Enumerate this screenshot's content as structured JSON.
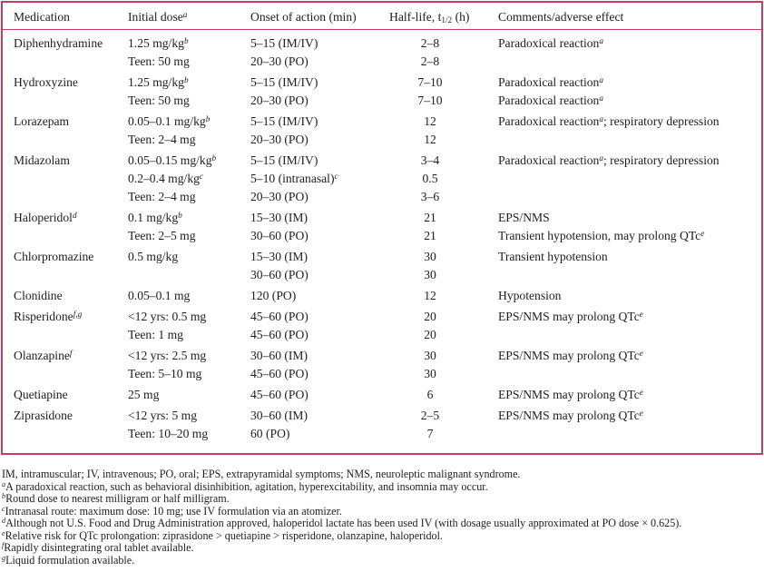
{
  "colors": {
    "border": "#c23e63",
    "text": "#1d1d1d"
  },
  "table": {
    "columns": [
      "Medication",
      "Initial dose^{a}",
      "Onset of action (min)",
      "Half-life, t_{1/2} (h)",
      "Comments/adverse effect"
    ],
    "groups": [
      {
        "medication": "Diphenhydramine",
        "rows": [
          [
            "1.25 mg/kg^{b}",
            "5–15 (IM/IV)",
            "2–8",
            "Paradoxical reaction^{a}"
          ],
          [
            "Teen: 50 mg",
            "20–30 (PO)",
            "2–8",
            ""
          ]
        ]
      },
      {
        "medication": "Hydroxyzine",
        "rows": [
          [
            "1.25 mg/kg^{b}",
            "5–15 (IM/IV)",
            "7–10",
            "Paradoxical reaction^{a}"
          ],
          [
            "Teen: 50 mg",
            "20–30 (PO)",
            "7–10",
            "Paradoxical reaction^{a}"
          ]
        ]
      },
      {
        "medication": "Lorazepam",
        "rows": [
          [
            "0.05–0.1 mg/kg^{b}",
            "5–15 (IM/IV)",
            "12",
            "Paradoxical reaction^{a}; respiratory depression"
          ],
          [
            "Teen: 2–4 mg",
            "20–30 (PO)",
            "12",
            ""
          ]
        ]
      },
      {
        "medication": "Midazolam",
        "rows": [
          [
            "0.05–0.15 mg/kg^{b}",
            "5–15 (IM/IV)",
            "3–4",
            "Paradoxical reaction^{a}; respiratory depression"
          ],
          [
            "0.2–0.4 mg/kg^{c}",
            "5–10 (intranasal)^{c}",
            "0.5",
            ""
          ],
          [
            "Teen: 2–4 mg",
            "20–30 (PO)",
            "3–6",
            ""
          ]
        ]
      },
      {
        "medication": "Haloperidol^{d}",
        "rows": [
          [
            "0.1 mg/kg^{b}",
            "15–30 (IM)",
            "21",
            "EPS/NMS"
          ],
          [
            "Teen: 2–5 mg",
            "30–60 (PO)",
            "21",
            "Transient hypotension, may prolong QTc^{e}"
          ]
        ]
      },
      {
        "medication": "Chlorpromazine",
        "rows": [
          [
            "0.5 mg/kg",
            "15–30 (IM)",
            "30",
            "Transient hypotension"
          ],
          [
            "",
            "30–60 (PO)",
            "30",
            ""
          ]
        ]
      },
      {
        "medication": "Clonidine",
        "rows": [
          [
            "0.05–0.1 mg",
            "120 (PO)",
            "12",
            "Hypotension"
          ]
        ]
      },
      {
        "medication": "Risperidone^{f,g}",
        "rows": [
          [
            "<12 yrs: 0.5 mg",
            "45–60 (PO)",
            "20",
            "EPS/NMS may prolong QTc^{e}"
          ],
          [
            "Teen: 1 mg",
            "45–60 (PO)",
            "20",
            ""
          ]
        ]
      },
      {
        "medication": "Olanzapine^{f}",
        "rows": [
          [
            "<12 yrs: 2.5 mg",
            "30–60 (IM)",
            "30",
            "EPS/NMS may prolong QTc^{e}"
          ],
          [
            "Teen: 5–10 mg",
            "45–60 (PO)",
            "30",
            ""
          ]
        ]
      },
      {
        "medication": "Quetiapine",
        "rows": [
          [
            "25 mg",
            "45–60 (PO)",
            "6",
            "EPS/NMS may prolong QTc^{e}"
          ]
        ]
      },
      {
        "medication": "Ziprasidone",
        "rows": [
          [
            "<12 yrs: 5 mg",
            "30–60 (IM)",
            "2–5",
            "EPS/NMS may prolong QTc^{e}"
          ],
          [
            "Teen: 10–20 mg",
            "60 (PO)",
            "7",
            ""
          ]
        ]
      }
    ]
  },
  "footnotes": [
    "IM, intramuscular; IV, intravenous; PO, oral; EPS, extrapyramidal symptoms; NMS, neuroleptic malignant syndrome.",
    "^{a}A paradoxical reaction, such as behavioral disinhibition, agitation, hyperexcitability, and insomnia may occur.",
    "^{b}Round dose to nearest milligram or half milligram.",
    "^{c}Intranasal route: maximum dose: 10 mg; use IV formulation via an atomizer.",
    "^{d}Although not U.S. Food and Drug Administration approved, haloperidol lactate has been used IV (with dosage usually approximated at PO dose × 0.625).",
    "^{e}Relative risk for QTc prolongation: ziprasidone > quetiapine > risperidone, olanzapine, haloperidol.",
    "^{f}Rapidly disintegrating oral tablet available.",
    "^{g}Liquid formulation available."
  ]
}
